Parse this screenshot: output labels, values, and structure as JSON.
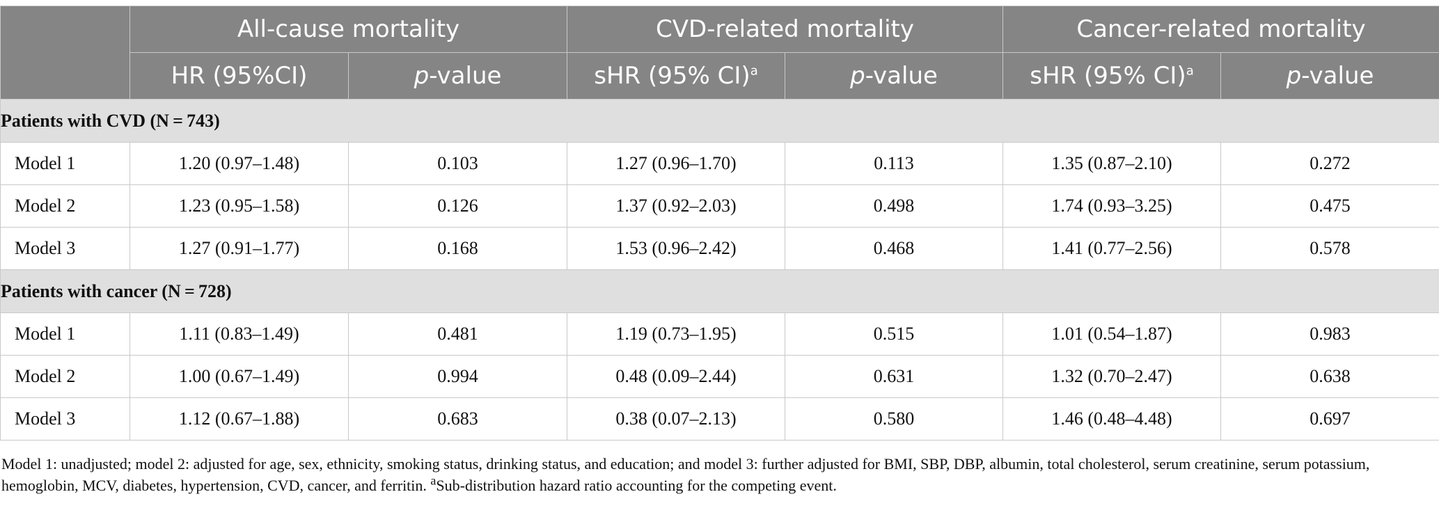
{
  "header": {
    "groups": [
      "All-cause mortality",
      "CVD-related mortality",
      "Cancer-related mortality"
    ],
    "subheaders": {
      "allcause_est": "HR (95%CI)",
      "cvd_est": "sHR (95% CI)",
      "cancer_est": "sHR (95% CI)",
      "p_italic": "p",
      "p_rest": "-value",
      "footnote_mark": "a"
    }
  },
  "sections": [
    {
      "title": "Patients with CVD (N = 743)",
      "rows": [
        {
          "model": "Model 1",
          "hr": "1.20 (0.97–1.48)",
          "p1": "0.103",
          "shr_cvd": "1.27 (0.96–1.70)",
          "p2": "0.113",
          "shr_cancer": "1.35 (0.87–2.10)",
          "p3": "0.272"
        },
        {
          "model": "Model 2",
          "hr": "1.23 (0.95–1.58)",
          "p1": "0.126",
          "shr_cvd": "1.37 (0.92–2.03)",
          "p2": "0.498",
          "shr_cancer": "1.74 (0.93–3.25)",
          "p3": "0.475"
        },
        {
          "model": "Model 3",
          "hr": "1.27 (0.91–1.77)",
          "p1": "0.168",
          "shr_cvd": "1.53 (0.96–2.42)",
          "p2": "0.468",
          "shr_cancer": "1.41 (0.77–2.56)",
          "p3": "0.578"
        }
      ]
    },
    {
      "title": "Patients with cancer (N = 728)",
      "rows": [
        {
          "model": "Model 1",
          "hr": "1.11 (0.83–1.49)",
          "p1": "0.481",
          "shr_cvd": "1.19 (0.73–1.95)",
          "p2": "0.515",
          "shr_cancer": "1.01 (0.54–1.87)",
          "p3": "0.983"
        },
        {
          "model": "Model 2",
          "hr": "1.00 (0.67–1.49)",
          "p1": "0.994",
          "shr_cvd": "0.48 (0.09–2.44)",
          "p2": "0.631",
          "shr_cancer": "1.32 (0.70–2.47)",
          "p3": "0.638"
        },
        {
          "model": "Model 3",
          "hr": "1.12 (0.67–1.88)",
          "p1": "0.683",
          "shr_cvd": "0.38 (0.07–2.13)",
          "p2": "0.580",
          "shr_cancer": "1.46 (0.48–4.48)",
          "p3": "0.697"
        }
      ]
    }
  ],
  "footnote": {
    "models": "Model 1: unadjusted; model 2: adjusted for age, sex, ethnicity, smoking status, drinking status, and education; and model 3: further adjusted for BMI, SBP, DBP, albumin, total cholesterol, serum creatinine, serum potassium, hemoglobin, MCV, diabetes, hypertension, CVD, cancer, and ferritin.",
    "mark": "a",
    "shr_note": "Sub-distribution hazard ratio accounting for the competing event."
  }
}
